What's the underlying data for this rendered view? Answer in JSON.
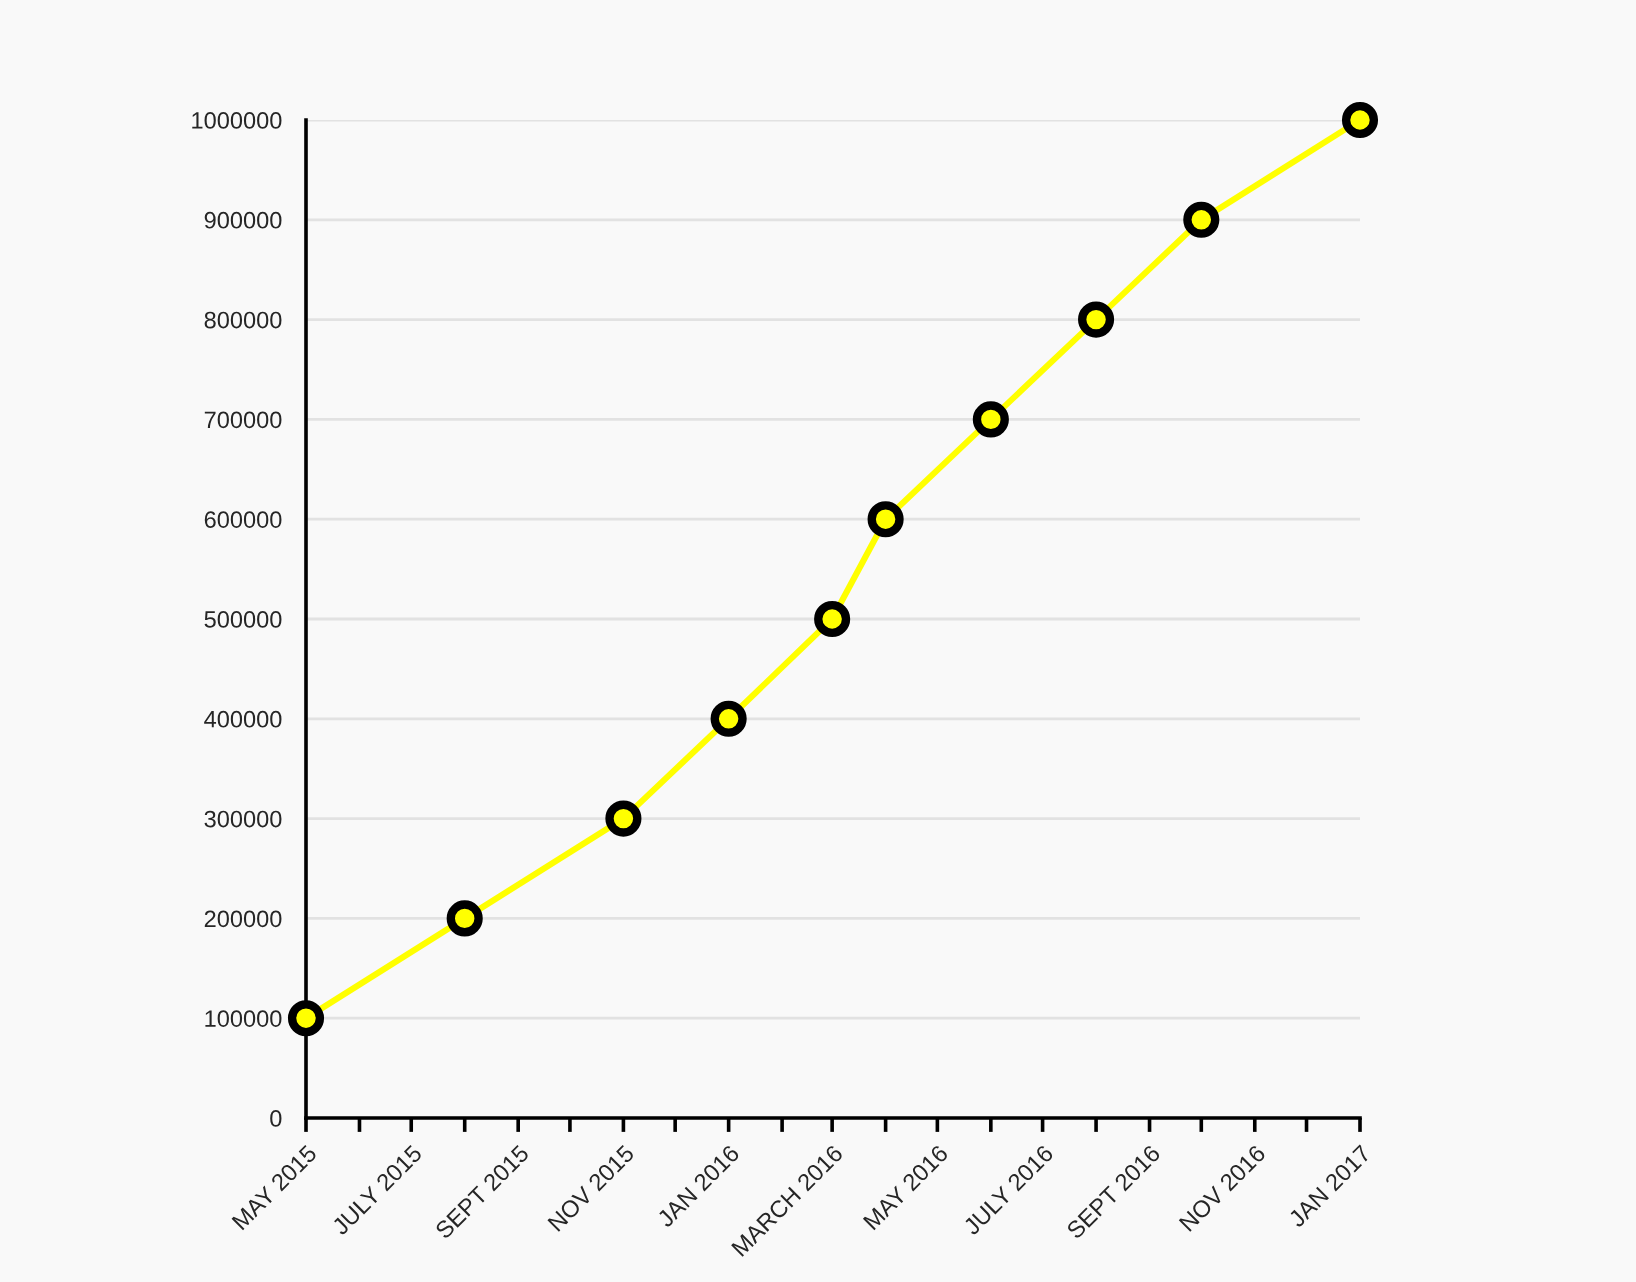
{
  "chart_data": {
    "type": "line",
    "x": [
      "2015-05",
      "2015-08",
      "2015-11",
      "2016-01",
      "2016-03",
      "2016-04",
      "2016-06",
      "2016-08",
      "2016-10",
      "2017-01"
    ],
    "series": [
      {
        "color": "#ffff00",
        "values": [
          100000,
          200000,
          300000,
          400000,
          500000,
          600000,
          700000,
          800000,
          900000,
          1000000
        ]
      }
    ],
    "xlim": [
      "2015-05",
      "2017-01"
    ],
    "xticks": [
      {
        "value": "2015-05",
        "label": "MAY 2015"
      },
      {
        "value": "2015-06",
        "label": null
      },
      {
        "value": "2015-07",
        "label": "JULY 2015"
      },
      {
        "value": "2015-08",
        "label": null
      },
      {
        "value": "2015-09",
        "label": "SEPT 2015"
      },
      {
        "value": "2015-10",
        "label": null
      },
      {
        "value": "2015-11",
        "label": "NOV 2015"
      },
      {
        "value": "2015-12",
        "label": null
      },
      {
        "value": "2016-01",
        "label": "JAN 2016"
      },
      {
        "value": "2016-02",
        "label": null
      },
      {
        "value": "2016-03",
        "label": "MARCH 2016"
      },
      {
        "value": "2016-04",
        "label": null
      },
      {
        "value": "2016-05",
        "label": "MAY 2016"
      },
      {
        "value": "2016-06",
        "label": null
      },
      {
        "value": "2016-07",
        "label": "JULY 2016"
      },
      {
        "value": "2016-08",
        "label": null
      },
      {
        "value": "2016-09",
        "label": "SEPT 2016"
      },
      {
        "value": "2016-10",
        "label": null
      },
      {
        "value": "2016-11",
        "label": "NOV 2016"
      },
      {
        "value": "2016-12",
        "label": null
      },
      {
        "value": "2017-01",
        "label": "JAN 2017"
      }
    ],
    "ylim": [
      0,
      1000000
    ],
    "yticks": [
      0,
      100000,
      200000,
      300000,
      400000,
      500000,
      600000,
      700000,
      800000,
      900000,
      1000000
    ],
    "grid": "y",
    "marker": "circle",
    "line_style": "solid"
  }
}
